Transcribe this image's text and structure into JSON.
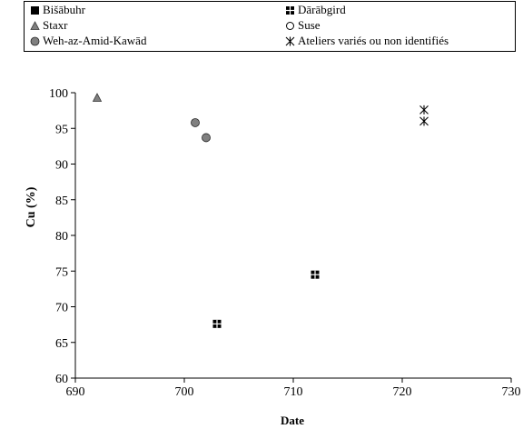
{
  "chart_data": {
    "type": "scatter",
    "title": "",
    "xlabel": "Date",
    "ylabel": "Cu (%)",
    "xlim": [
      690,
      730
    ],
    "ylim": [
      60,
      100
    ],
    "x_ticks": [
      "690",
      "700",
      "710",
      "720",
      "730"
    ],
    "y_ticks": [
      "60",
      "65",
      "70",
      "75",
      "80",
      "85",
      "90",
      "95",
      "100"
    ],
    "grid": false,
    "legend_position": "top",
    "series": [
      {
        "name": "Bišābuhr",
        "marker": "filled-square",
        "color": "#000000",
        "points": []
      },
      {
        "name": "Dārābgird",
        "marker": "quartered-square",
        "color": "#000000",
        "points": [
          {
            "x": 703,
            "y": 67.6
          },
          {
            "x": 712,
            "y": 74.5
          }
        ]
      },
      {
        "name": "Staxr",
        "marker": "triangle",
        "color": "#808080",
        "points": [
          {
            "x": 692,
            "y": 99.3
          }
        ]
      },
      {
        "name": "Suse",
        "marker": "open-circle",
        "color": "#000000",
        "points": []
      },
      {
        "name": "Weh-az-Amid-Kawād",
        "marker": "gray-circle",
        "color": "#808080",
        "points": [
          {
            "x": 701,
            "y": 95.8
          },
          {
            "x": 702,
            "y": 93.7
          }
        ]
      },
      {
        "name": "Ateliers variés ou non identifiés",
        "marker": "asterisk",
        "color": "#000000",
        "points": [
          {
            "x": 722,
            "y": 97.6
          },
          {
            "x": 722,
            "y": 96.0
          }
        ]
      }
    ]
  }
}
